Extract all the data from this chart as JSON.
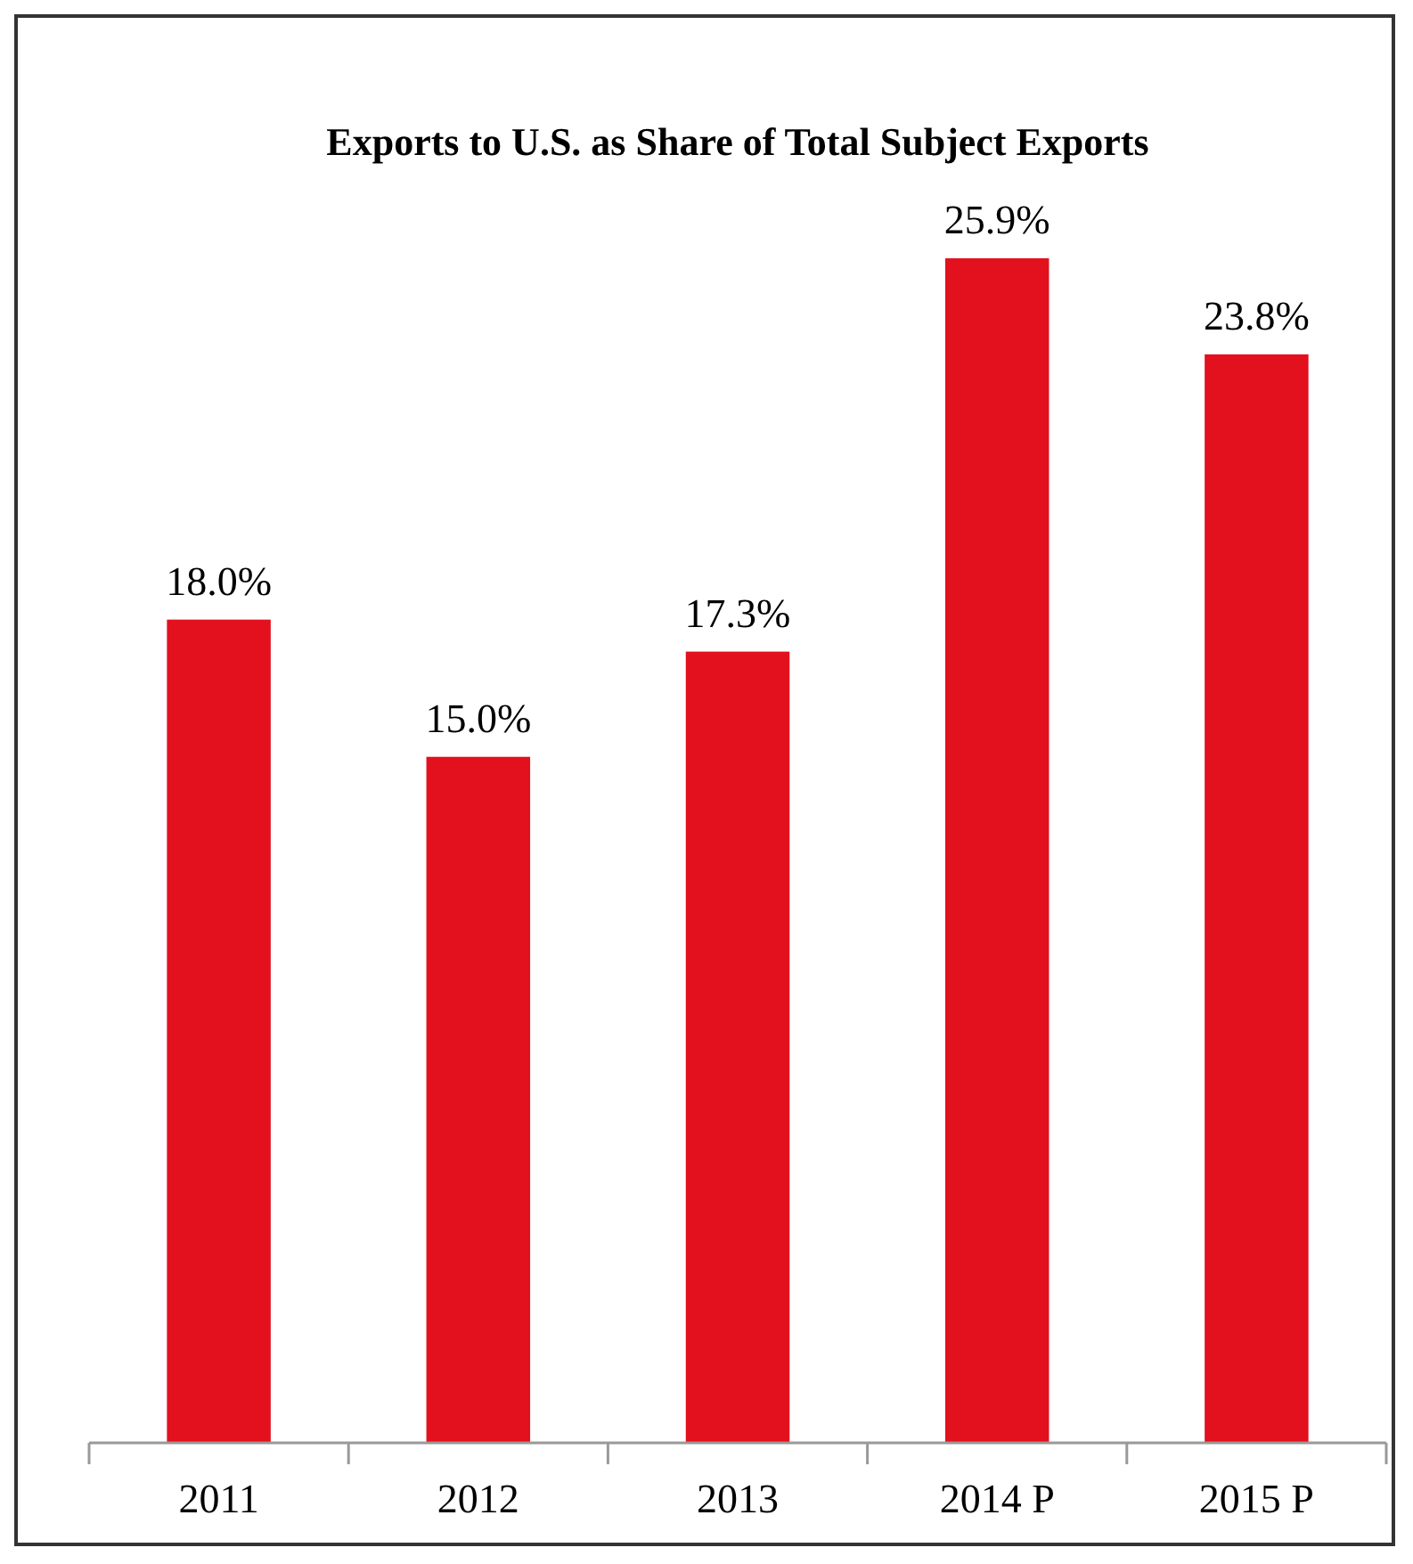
{
  "chart_data": {
    "type": "bar",
    "title": "Exports to U.S.  as Share of Total Subject Exports",
    "categories": [
      "2011",
      "2012",
      "2013",
      "2014 P",
      "2015 P"
    ],
    "values": [
      18.0,
      15.0,
      17.3,
      25.9,
      23.8
    ],
    "value_labels": [
      "18.0%",
      "15.0%",
      "17.3%",
      "25.9%",
      "23.8%"
    ],
    "color": "#e3101e",
    "grid": false
  }
}
